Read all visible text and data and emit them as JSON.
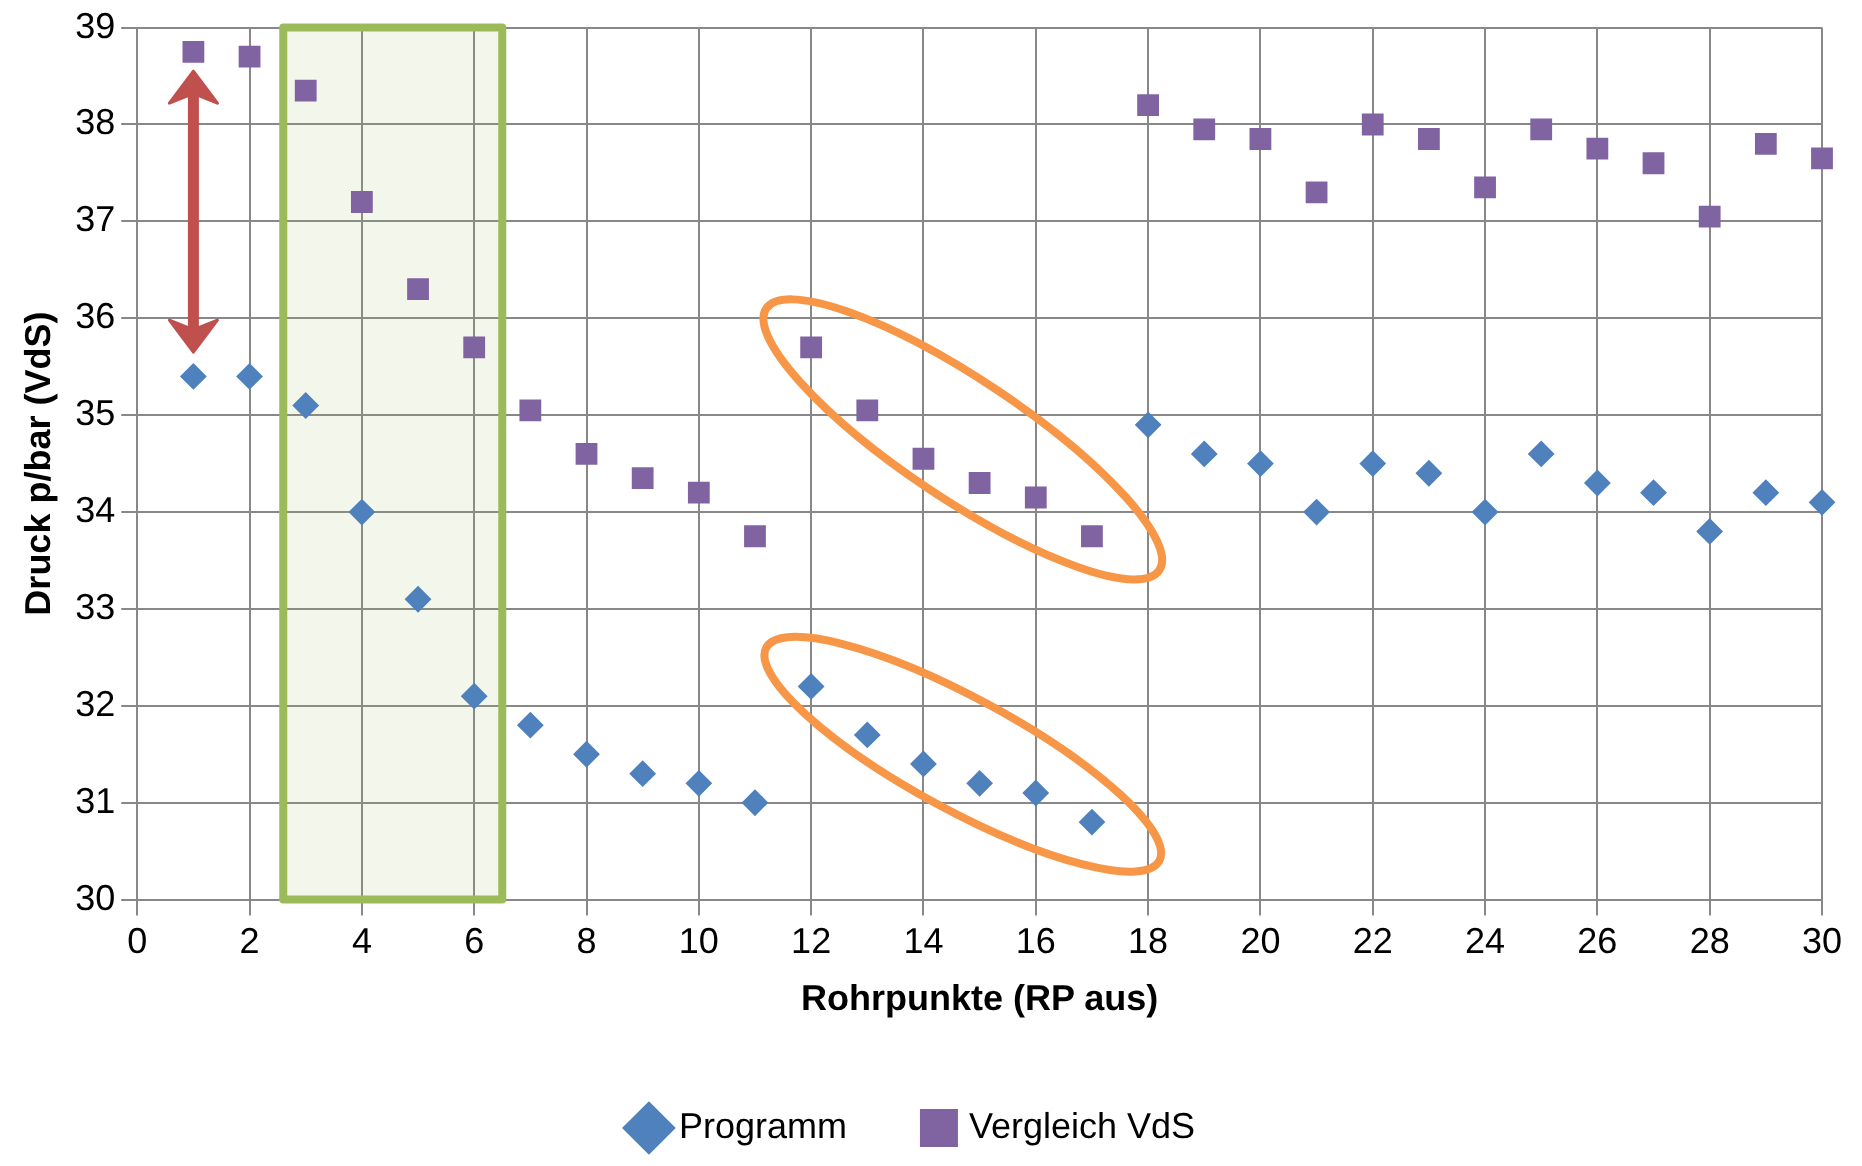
{
  "chart_data": {
    "type": "scatter",
    "xlabel": "Rohrpunkte (RP aus)",
    "ylabel": "Druck p/bar (VdS)",
    "x": [
      1,
      2,
      3,
      4,
      5,
      6,
      7,
      8,
      9,
      10,
      11,
      12,
      13,
      14,
      15,
      16,
      17,
      18,
      19,
      20,
      21,
      22,
      23,
      24,
      25,
      26,
      27,
      28,
      29,
      30
    ],
    "series": [
      {
        "name": "Programm",
        "color": "#4f81bd",
        "marker": "diamond",
        "values": [
          35.4,
          35.4,
          35.1,
          34.0,
          33.1,
          32.1,
          31.8,
          31.5,
          31.3,
          31.2,
          31.0,
          32.2,
          31.7,
          31.4,
          31.2,
          31.1,
          30.8,
          34.9,
          34.6,
          34.5,
          34.0,
          34.5,
          34.4,
          34.0,
          34.6,
          34.3,
          34.2,
          33.8,
          34.2,
          34.1
        ]
      },
      {
        "name": "Vergleich VdS",
        "color": "#8064a2",
        "marker": "square",
        "values": [
          38.75,
          38.7,
          38.35,
          37.2,
          36.3,
          35.7,
          35.05,
          34.6,
          34.35,
          34.2,
          33.75,
          35.7,
          35.05,
          34.55,
          34.3,
          34.15,
          33.75,
          38.2,
          37.95,
          37.85,
          37.3,
          38.0,
          37.85,
          37.35,
          37.95,
          37.75,
          37.6,
          37.05,
          37.8,
          37.65
        ]
      }
    ],
    "xlim": [
      0,
      30
    ],
    "xticks": [
      0,
      2,
      4,
      6,
      8,
      10,
      12,
      14,
      16,
      18,
      20,
      22,
      24,
      26,
      28,
      30
    ],
    "ylim": [
      30,
      39
    ],
    "yticks": [
      30,
      31,
      32,
      33,
      34,
      35,
      36,
      37,
      38,
      39
    ],
    "bands": [
      {
        "axis": "x",
        "from": 2.6,
        "to": 6.5,
        "color": "#9bbb59"
      }
    ],
    "grid": true,
    "legend": "bottom"
  }
}
